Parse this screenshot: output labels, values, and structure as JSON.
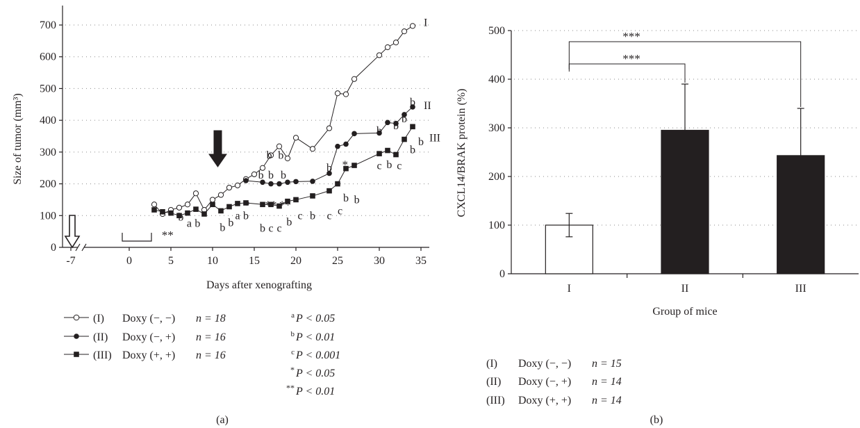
{
  "colors": {
    "ink": "#231f20",
    "bar_filled": "#231f20",
    "bar_open": "#ffffff",
    "grid": "#8a8a8a"
  },
  "chart_data": [
    {
      "panel": "(a)",
      "type": "line",
      "xlabel": "Days after xenografting",
      "ylabel": "Size of tumor (mm³)",
      "xlim": [
        -8,
        36
      ],
      "ylim": [
        0,
        700
      ],
      "x_ticks": [
        -7,
        0,
        5,
        10,
        15,
        20,
        25,
        30,
        35
      ],
      "y_ticks": [
        0,
        100,
        200,
        300,
        400,
        500,
        600,
        700
      ],
      "grid": "horizontal-dotted",
      "series": [
        {
          "name": "I",
          "marker": "open-circle",
          "x": [
            3,
            4,
            5,
            6,
            7,
            8,
            9,
            10,
            11,
            12,
            13,
            14,
            15,
            16,
            17,
            18,
            19,
            20,
            22,
            24,
            25,
            26,
            27,
            30,
            31,
            32,
            33,
            34
          ],
          "y": [
            135,
            105,
            118,
            125,
            135,
            170,
            118,
            150,
            165,
            188,
            195,
            215,
            230,
            250,
            290,
            318,
            280,
            345,
            310,
            375,
            485,
            482,
            530,
            605,
            630,
            645,
            680,
            697
          ]
        },
        {
          "name": "II",
          "marker": "filled-circle",
          "x": [
            14,
            16,
            17,
            18,
            19,
            20,
            22,
            24,
            25,
            26,
            27,
            30,
            31,
            32,
            33,
            34
          ],
          "y": [
            210,
            205,
            200,
            200,
            205,
            207,
            208,
            233,
            318,
            325,
            358,
            360,
            393,
            390,
            418,
            442
          ]
        },
        {
          "name": "III",
          "marker": "filled-square",
          "x": [
            3,
            4,
            5,
            6,
            7,
            8,
            9,
            10,
            11,
            12,
            13,
            14,
            16,
            17,
            18,
            19,
            20,
            22,
            24,
            25,
            26,
            27,
            30,
            31,
            32,
            33,
            34
          ],
          "y": [
            118,
            112,
            108,
            100,
            108,
            120,
            105,
            135,
            115,
            128,
            138,
            140,
            135,
            135,
            130,
            145,
            150,
            162,
            178,
            200,
            248,
            258,
            295,
            305,
            292,
            340,
            380
          ]
        }
      ],
      "series_end_labels": [
        "I",
        "II",
        "III"
      ],
      "significance_letters": [
        {
          "text": "a",
          "x": 7.2,
          "y": 75
        },
        {
          "text": "b",
          "x": 8.2,
          "y": 75
        },
        {
          "text": "b",
          "x": 6.2,
          "y": 95
        },
        {
          "text": "b",
          "x": 11.2,
          "y": 62
        },
        {
          "text": "b",
          "x": 12.2,
          "y": 78
        },
        {
          "text": "a",
          "x": 13.0,
          "y": 100
        },
        {
          "text": "b",
          "x": 14.0,
          "y": 100
        },
        {
          "text": "b",
          "x": 16.0,
          "y": 60
        },
        {
          "text": "c",
          "x": 17.0,
          "y": 60
        },
        {
          "text": "c",
          "x": 18.0,
          "y": 60
        },
        {
          "text": "b",
          "x": 19.2,
          "y": 80
        },
        {
          "text": "c",
          "x": 20.5,
          "y": 100
        },
        {
          "text": "b",
          "x": 22.0,
          "y": 100
        },
        {
          "text": "c",
          "x": 24.0,
          "y": 100
        },
        {
          "text": "c",
          "x": 25.3,
          "y": 115
        },
        {
          "text": "b",
          "x": 15.8,
          "y": 228
        },
        {
          "text": "b",
          "x": 17.0,
          "y": 228
        },
        {
          "text": "b",
          "x": 18.5,
          "y": 228
        },
        {
          "text": "b",
          "x": 16.8,
          "y": 290
        },
        {
          "text": "b",
          "x": 18.2,
          "y": 290
        },
        {
          "text": "b",
          "x": 24.0,
          "y": 250
        },
        {
          "text": "b",
          "x": 26.0,
          "y": 155
        },
        {
          "text": "b",
          "x": 27.3,
          "y": 150
        },
        {
          "text": "b",
          "x": 30.0,
          "y": 367
        },
        {
          "text": "b",
          "x": 32.0,
          "y": 383
        },
        {
          "text": "b",
          "x": 33.0,
          "y": 405
        },
        {
          "text": "b",
          "x": 34.0,
          "y": 457
        },
        {
          "text": "c",
          "x": 30.0,
          "y": 257
        },
        {
          "text": "b",
          "x": 31.2,
          "y": 260
        },
        {
          "text": "c",
          "x": 32.4,
          "y": 257
        },
        {
          "text": "b",
          "x": 34.0,
          "y": 307
        },
        {
          "text": "b",
          "x": 35.0,
          "y": 333
        }
      ],
      "significance_stars": [
        {
          "text": "*",
          "x": 14.1,
          "y": 143
        },
        {
          "text": "**",
          "x": 17.0,
          "y": 143
        },
        {
          "text": "**",
          "x": 18.7,
          "y": 143
        },
        {
          "text": "*",
          "x": 25.9,
          "y": 270
        },
        {
          "text": "**",
          "x": 4.6,
          "y": 48
        }
      ],
      "legend": [
        {
          "label": "(I)",
          "desc": "Doxy (−, −)",
          "n": "n = 18"
        },
        {
          "label": "(II)",
          "desc": "Doxy (−, +)",
          "n": "n = 16"
        },
        {
          "label": "(III)",
          "desc": "Doxy (+, +)",
          "n": "n = 16"
        }
      ],
      "significance_notes": [
        {
          "sup": "a",
          "text": "P < 0.05"
        },
        {
          "sup": "b",
          "text": "P < 0.01"
        },
        {
          "sup": "c",
          "text": "P < 0.001"
        },
        {
          "sup": "*",
          "text": "P < 0.05"
        },
        {
          "sup": "**",
          "text": "P < 0.01"
        }
      ]
    },
    {
      "panel": "(b)",
      "type": "bar",
      "categories": [
        "I",
        "II",
        "III"
      ],
      "values": [
        100,
        295,
        243
      ],
      "error": [
        24,
        95,
        97
      ],
      "fill": [
        "open",
        "filled",
        "filled"
      ],
      "xlabel": "Group of mice",
      "ylabel": "CXCL14/BRAK protein (%)",
      "ylim": [
        0,
        500
      ],
      "y_ticks": [
        0,
        100,
        200,
        300,
        400,
        500
      ],
      "grid": "horizontal-dotted",
      "comparisons": [
        {
          "from": "I",
          "to": "III",
          "label": "***"
        },
        {
          "from": "I",
          "to": "II",
          "label": "***"
        }
      ],
      "legend": [
        {
          "label": "(I)",
          "desc": "Doxy (−, −)",
          "n": "n = 15"
        },
        {
          "label": "(II)",
          "desc": "Doxy (−, +)",
          "n": "n = 14"
        },
        {
          "label": "(III)",
          "desc": "Doxy (+, +)",
          "n": "n = 14"
        }
      ]
    }
  ]
}
